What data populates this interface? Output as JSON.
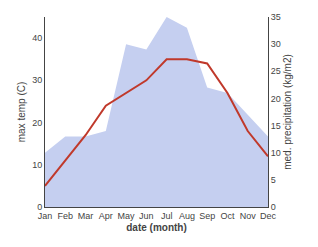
{
  "chart_data": {
    "type": "line",
    "categories": [
      "Jan",
      "Feb",
      "Mar",
      "Apr",
      "May",
      "Jun",
      "Jul",
      "Aug",
      "Sep",
      "Oct",
      "Nov",
      "Dec"
    ],
    "series": [
      {
        "type": "area",
        "color": "#c5cff0",
        "axis": "y2",
        "values": [
          10,
          13,
          13,
          14,
          30,
          29,
          35,
          33,
          22,
          21,
          17,
          13
        ]
      },
      {
        "type": "line",
        "color": "#c0392b",
        "values": [
          5,
          11,
          17,
          24,
          27,
          30,
          35,
          35,
          34,
          27,
          18,
          12
        ]
      }
    ],
    "xlabel": "date (month)",
    "ylabel": "max temp (C)",
    "y2label": "med. precipitation (kg/m2)",
    "ylim": [
      0,
      45
    ],
    "yticks": [
      0,
      10,
      20,
      30,
      40
    ],
    "y2lim": [
      0,
      35
    ],
    "y2ticks": [
      0,
      5,
      10,
      15,
      20,
      25,
      30,
      35
    ],
    "grid": false
  }
}
